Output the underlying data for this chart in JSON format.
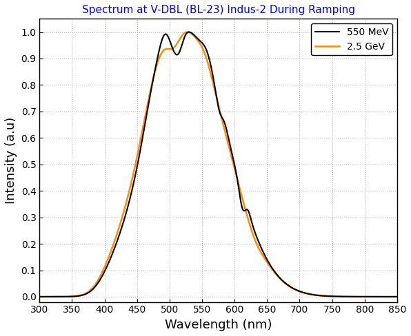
{
  "title": "Spectrum at V-DBL (BL-23) Indus-2 During Ramping",
  "title_color": "blue",
  "xlabel": "Wavelength (nm)",
  "ylabel": "Intensity (a.u)",
  "xlim": [
    300,
    850
  ],
  "ylim": [
    -0.02,
    1.05
  ],
  "xticks": [
    300,
    350,
    400,
    450,
    500,
    550,
    600,
    650,
    700,
    750,
    800,
    850
  ],
  "yticks": [
    0.0,
    0.1,
    0.2,
    0.3,
    0.4,
    0.5,
    0.6,
    0.7,
    0.8,
    0.9,
    1.0
  ],
  "legend_550": "550 MeV",
  "legend_25": "2.5 GeV",
  "color_550": "#000000",
  "color_25": "#FF8C00",
  "background_color": "#ffffff",
  "grid_color": "#aaaaaa",
  "figsize": [
    5.96,
    4.88
  ],
  "dpi": 100
}
